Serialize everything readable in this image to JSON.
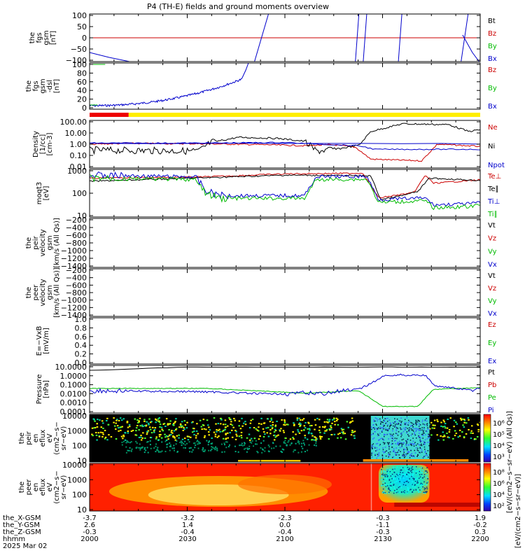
{
  "chart_data": {
    "type": "line",
    "title": "P4 (TH-E) fields and ground moments overview",
    "date_label": "2025 Mar 02",
    "x_time_labels": [
      "2000",
      "2030",
      "2100",
      "2130",
      "2200"
    ],
    "footer_rows": [
      {
        "name": "the_X-GSM",
        "values": [
          "-3.7",
          "-3.2",
          "-2.3",
          "-0.3",
          "1.9"
        ]
      },
      {
        "name": "the_Y-GSM",
        "values": [
          "2.6",
          "1.4",
          "0.0",
          "-1.1",
          "-0.2"
        ]
      },
      {
        "name": "the_Z-GSM",
        "values": [
          "-0.3",
          "-0.4",
          "-0.4",
          "-0.3",
          "0.3"
        ]
      },
      {
        "name": "hhmm",
        "values": [
          "2000",
          "2030",
          "2100",
          "2130",
          "2200"
        ]
      }
    ],
    "panels": [
      {
        "id": "fgs-gsm",
        "ylabel_lines": [
          "the",
          "fgs",
          "gsm",
          "[nT]"
        ],
        "yticks": [
          "100",
          "50",
          "0",
          "−50",
          "−100"
        ],
        "legend": [
          {
            "t": "Bt",
            "c": "#000000"
          },
          {
            "t": "Bz",
            "c": "#cc0000"
          },
          {
            "t": "By",
            "c": "#00bb00"
          },
          {
            "t": "Bx",
            "c": "#0000cc"
          }
        ]
      },
      {
        "id": "fgs-gsm-dsl",
        "ylabel_lines": [
          "the",
          "fgs",
          "gsm",
          "-dsl",
          "[nT]"
        ],
        "yticks": [
          "100",
          "80",
          "60",
          "40",
          "20",
          "0"
        ],
        "legend": [
          {
            "t": "Bz",
            "c": "#cc0000"
          },
          {
            "t": "By",
            "c": "#00bb00"
          },
          {
            "t": "Bx",
            "c": "#0000cc"
          }
        ]
      },
      {
        "id": "density",
        "ylabel_lines": [
          "Density",
          "[1/cc]",
          "[cm-3]"
        ],
        "yticks": [
          "100.00",
          "10.00",
          "1.00",
          "0.10",
          "0.01"
        ],
        "legend": [
          {
            "t": "Ne",
            "c": "#cc0000"
          },
          {
            "t": "Ni",
            "c": "#000000"
          },
          {
            "t": "Npot",
            "c": "#0000cc"
          }
        ]
      },
      {
        "id": "temperature",
        "ylabel_lines": [
          "moqt3",
          "[eV]"
        ],
        "yticks": [
          "1000",
          "100",
          "10"
        ],
        "legend": [
          {
            "t": "Te⊥",
            "c": "#cc0000"
          },
          {
            "t": "Te∥",
            "c": "#000000"
          },
          {
            "t": "Ti⊥",
            "c": "#0000cc"
          },
          {
            "t": "Ti∥",
            "c": "#00bb00"
          }
        ]
      },
      {
        "id": "peir-velocity",
        "ylabel_lines": [
          "the",
          "peir",
          "velocity",
          "gsm",
          "[km/s (All Qs)]"
        ],
        "yticks": [
          "−200",
          "−400",
          "−600",
          "−800",
          "−1000",
          "−1200",
          "−1400"
        ],
        "legend": [
          {
            "t": "Vt",
            "c": "#000000"
          },
          {
            "t": "Vz",
            "c": "#cc0000"
          },
          {
            "t": "Vy",
            "c": "#00bb00"
          },
          {
            "t": "Vx",
            "c": "#0000cc"
          }
        ]
      },
      {
        "id": "peer-velocity",
        "ylabel_lines": [
          "the",
          "peer",
          "velocity",
          "gsm",
          "[km/s (All Qs)]"
        ],
        "yticks": [
          "−200",
          "−400",
          "−600",
          "−800",
          "−1000",
          "−1200",
          "−1400"
        ],
        "legend": [
          {
            "t": "Vt",
            "c": "#000000"
          },
          {
            "t": "Vz",
            "c": "#cc0000"
          },
          {
            "t": "Vy",
            "c": "#00bb00"
          },
          {
            "t": "Vx",
            "c": "#0000cc"
          }
        ]
      },
      {
        "id": "efield",
        "ylabel_lines": [
          "E=−VxB",
          "[mV/m]"
        ],
        "yticks": [
          "1.0",
          "0.8",
          "0.6",
          "0.4",
          "0.2",
          "0.0"
        ],
        "legend": [
          {
            "t": "Ez",
            "c": "#cc0000"
          },
          {
            "t": "Ey",
            "c": "#00bb00"
          },
          {
            "t": "Ex",
            "c": "#0000cc"
          }
        ]
      },
      {
        "id": "pressure",
        "ylabel_lines": [
          "Pressure",
          "[nPa]"
        ],
        "yticks": [
          "10.0000",
          "1.0000",
          "0.1000",
          "0.0100",
          "0.0010",
          "0.0001"
        ],
        "legend": [
          {
            "t": "Pt",
            "c": "#000000"
          },
          {
            "t": "Pb",
            "c": "#cc0000"
          },
          {
            "t": "Pe",
            "c": "#00bb00"
          },
          {
            "t": "Pi",
            "c": "#0000cc"
          }
        ]
      },
      {
        "id": "peir-eflux",
        "ylabel_lines": [
          "the",
          "peir",
          "en",
          "eflux",
          "eV",
          "(cm2−s−",
          "sr−eV)"
        ],
        "yticks": [
          "10000",
          "1000",
          "100",
          "10"
        ],
        "colorbar_ticks": [
          "10⁶",
          "10⁵",
          "10⁴",
          "10³"
        ],
        "colorbar_label": "[eV/(cm2−s−sr−eV) (All Qs)]"
      },
      {
        "id": "peer-eflux",
        "ylabel_lines": [
          "the",
          "peer",
          "en",
          "eflux",
          "eV",
          "(cm2−s−",
          "sr−eV)"
        ],
        "yticks": [
          "10000",
          "1000",
          "100",
          "10"
        ],
        "colorbar_ticks": [
          "10⁸",
          "10⁶",
          "10⁴",
          "10²"
        ],
        "colorbar_label": "[eV/(cm2−s−sr−eV)]"
      }
    ],
    "mode_bar_colors": [
      "#ee0000",
      "#ffee00"
    ]
  }
}
